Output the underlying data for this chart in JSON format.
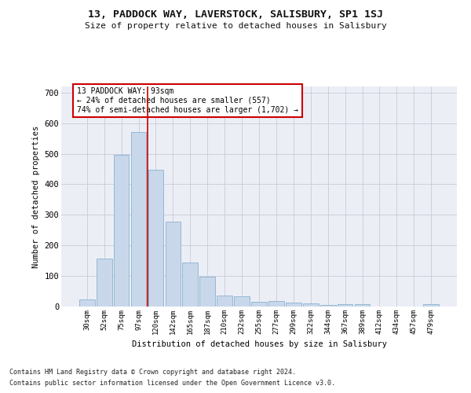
{
  "title": "13, PADDOCK WAY, LAVERSTOCK, SALISBURY, SP1 1SJ",
  "subtitle": "Size of property relative to detached houses in Salisbury",
  "xlabel": "Distribution of detached houses by size in Salisbury",
  "ylabel": "Number of detached properties",
  "footnote1": "Contains HM Land Registry data © Crown copyright and database right 2024.",
  "footnote2": "Contains public sector information licensed under the Open Government Licence v3.0.",
  "annotation_title": "13 PADDOCK WAY: 93sqm",
  "annotation_line1": "← 24% of detached houses are smaller (557)",
  "annotation_line2": "74% of semi-detached houses are larger (1,702) →",
  "bar_color": "#c8d8ea",
  "bar_edge_color": "#7aa8cc",
  "grid_color": "#c8ccd8",
  "bg_color": "#eceef6",
  "vline_color": "#cc0000",
  "annotation_box_color": "#cc0000",
  "categories": [
    "30sqm",
    "52sqm",
    "75sqm",
    "97sqm",
    "120sqm",
    "142sqm",
    "165sqm",
    "187sqm",
    "210sqm",
    "232sqm",
    "255sqm",
    "277sqm",
    "299sqm",
    "322sqm",
    "344sqm",
    "367sqm",
    "389sqm",
    "412sqm",
    "434sqm",
    "457sqm",
    "479sqm"
  ],
  "values": [
    22,
    156,
    497,
    572,
    447,
    277,
    143,
    99,
    35,
    33,
    16,
    18,
    12,
    11,
    6,
    8,
    8,
    0,
    0,
    0,
    7
  ],
  "vline_position": 3.5,
  "ylim": [
    0,
    720
  ],
  "yticks": [
    0,
    100,
    200,
    300,
    400,
    500,
    600,
    700
  ]
}
